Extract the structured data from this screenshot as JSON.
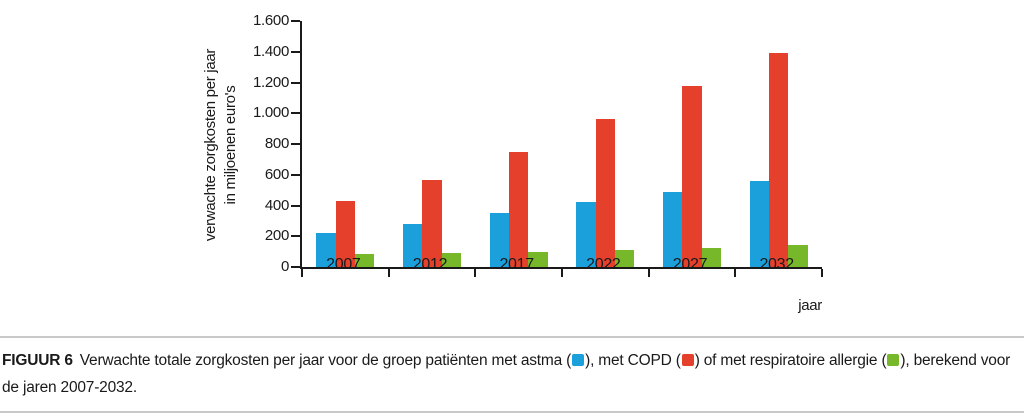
{
  "chart_data": {
    "type": "bar",
    "title": "",
    "xlabel": "jaar",
    "ylabel_line1": "verwachte zorgkosten per jaar",
    "ylabel_line2": "in miljoenen euro's",
    "categories": [
      "2007",
      "2012",
      "2017",
      "2022",
      "2027",
      "2032"
    ],
    "series": [
      {
        "name": "astma",
        "color": "#1BA0DC",
        "values": [
          220,
          280,
          350,
          420,
          490,
          560
        ]
      },
      {
        "name": "COPD",
        "color": "#E5402C",
        "values": [
          430,
          565,
          750,
          965,
          1180,
          1395
        ]
      },
      {
        "name": "respiratoire allergie",
        "color": "#77B82B",
        "values": [
          85,
          90,
          100,
          110,
          125,
          140
        ]
      }
    ],
    "ylim": [
      0,
      1600
    ],
    "y_tick_step": 200,
    "y_tick_labels": [
      "0",
      "200",
      "400",
      "600",
      "800",
      "1.000",
      "1.200",
      "1.400",
      "1.600"
    ],
    "grid": false,
    "legend_position": "inline-in-caption"
  },
  "caption": {
    "label": "FIGUUR 6",
    "segments": [
      {
        "text": "Verwachte totale zorgkosten per jaar voor de groep patiënten met astma ("
      },
      {
        "swatch": "#1BA0DC",
        "series": "astma"
      },
      {
        "text": "), met COPD ("
      },
      {
        "swatch": "#E5402C",
        "series": "COPD"
      },
      {
        "text": ") of met respiratoire allergie ("
      },
      {
        "swatch": "#77B82B",
        "series": "respiratoire-allergie"
      },
      {
        "text": "), berekend voor de jaren 2007-2032."
      }
    ]
  },
  "colors": {
    "axis": "#1a1a1a",
    "text": "#1a1a1a",
    "rule": "#c9c9c9"
  }
}
